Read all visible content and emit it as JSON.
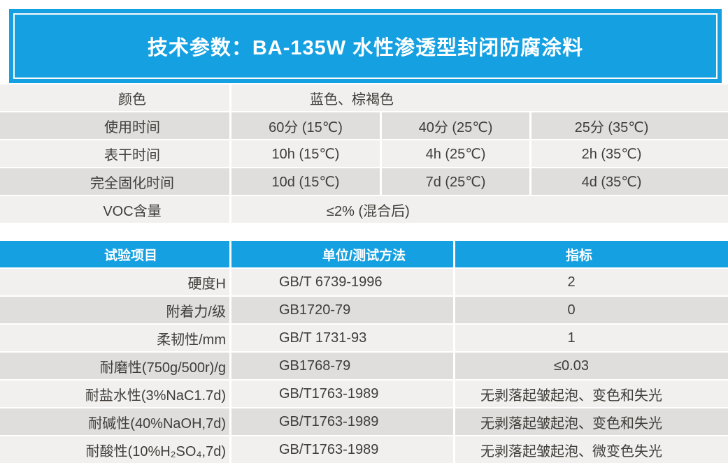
{
  "title": "技术参数：BA-135W 水性渗透型封闭防腐涂料",
  "colors": {
    "accent": "#14a0e1",
    "row_light": "#f1f0ee",
    "row_dark": "#dfdedc",
    "text": "#403c39"
  },
  "params_table": {
    "rows": [
      {
        "label": "颜色",
        "span_value": "蓝色、棕褐色"
      },
      {
        "label": "使用时间",
        "values": [
          "60分 (15℃)",
          "40分 (25℃)",
          "25分 (35℃)"
        ]
      },
      {
        "label": "表干时间",
        "values": [
          "10h (15℃)",
          "4h (25℃)",
          "2h (35℃)"
        ]
      },
      {
        "label": "完全固化时间",
        "values": [
          "10d (15℃)",
          "7d (25℃)",
          "4d (35℃)"
        ]
      },
      {
        "label": "VOC含量",
        "span_value": "≤2% (混合后)"
      }
    ]
  },
  "test_table": {
    "headers": [
      "试验项目",
      "单位/测试方法",
      "指标"
    ],
    "rows": [
      [
        "硬度H",
        "GB/T 6739-1996",
        "2"
      ],
      [
        "附着力/级",
        "GB1720-79",
        "0"
      ],
      [
        "柔韧性/mm",
        "GB/T 1731-93",
        "1"
      ],
      [
        "耐磨性(750g/500r)/g",
        "GB1768-79",
        "≤0.03"
      ],
      [
        "耐盐水性(3%NaC1.7d)",
        "GB/T1763-1989",
        "无剥落起皱起泡、变色和失光"
      ],
      [
        "耐碱性(40%NaOH,7d)",
        "GB/T1763-1989",
        "无剥落起皱起泡、变色和失光"
      ],
      [
        "耐酸性(10%H₂SO₄,7d)",
        "GB/T1763-1989",
        "无剥落起皱起泡、微变色失光"
      ]
    ]
  }
}
